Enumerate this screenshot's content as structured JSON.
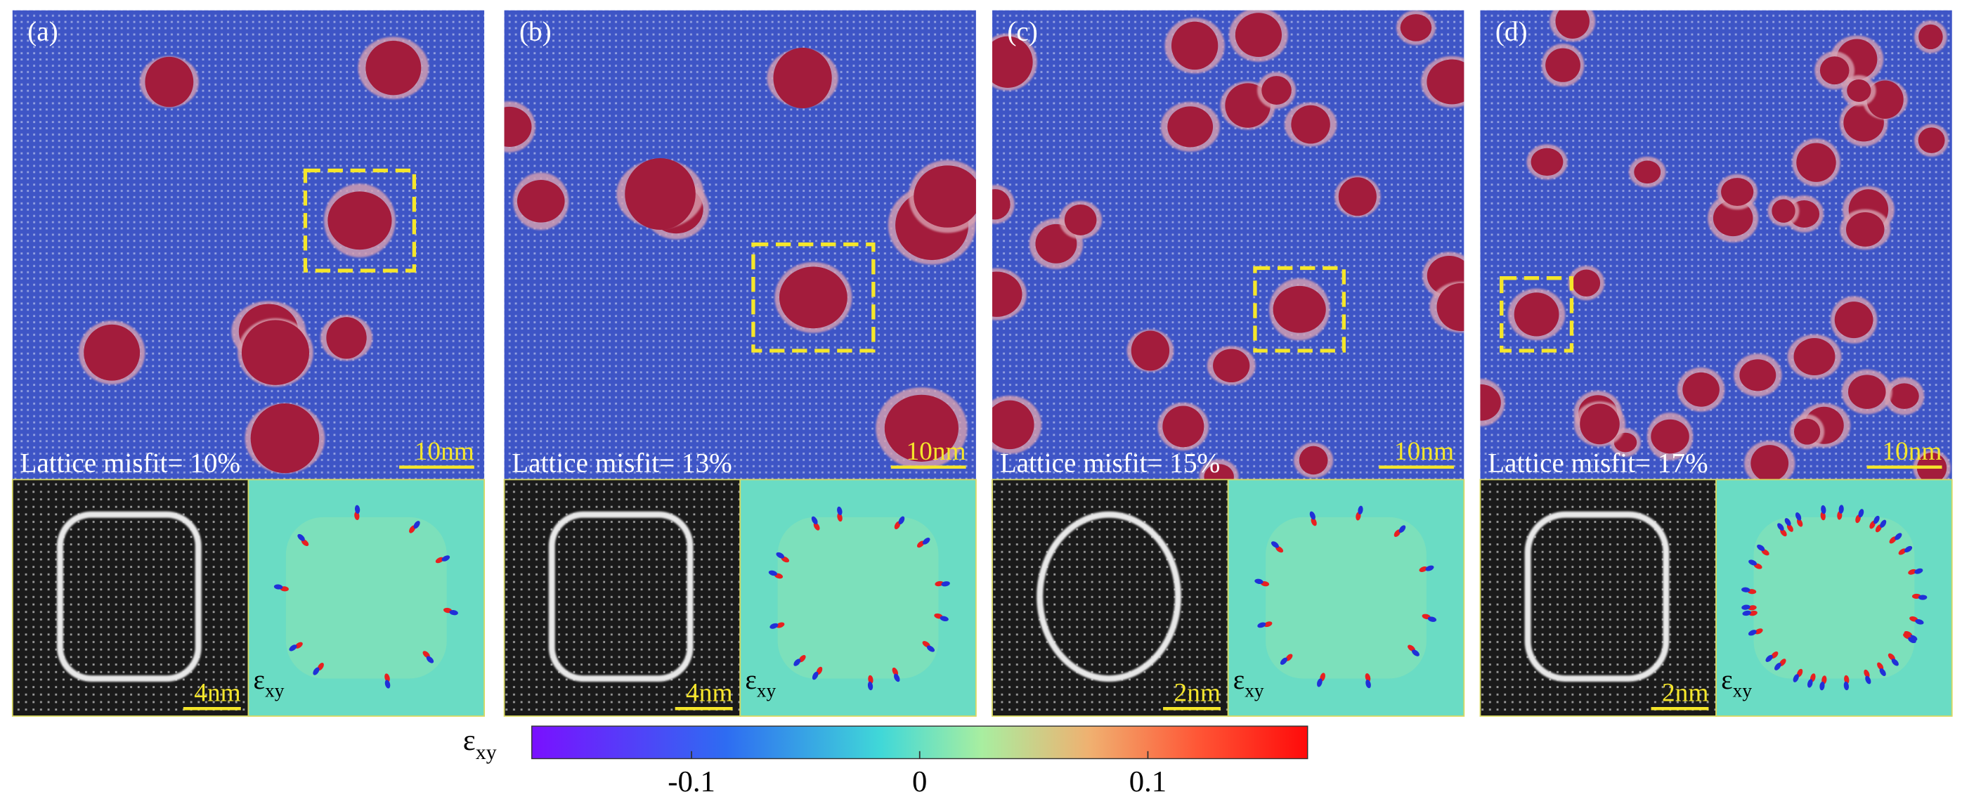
{
  "panels": [
    {
      "label": "(a)",
      "misfit": "Lattice misfit= 10%",
      "scale_main": "10nm",
      "scale_inset": "4nm"
    },
    {
      "label": "(b)",
      "misfit": "Lattice misfit= 13%",
      "scale_main": "10nm",
      "scale_inset": "4nm"
    },
    {
      "label": "(c)",
      "misfit": "Lattice misfit= 15%",
      "scale_main": "10nm",
      "scale_inset": "2nm"
    },
    {
      "label": "(d)",
      "misfit": "Lattice misfit= 17%",
      "scale_main": "10nm",
      "scale_inset": "2nm"
    }
  ],
  "inset_label": {
    "symbol": "ε",
    "subscript": "xy"
  },
  "colorbar": {
    "label": {
      "symbol": "ε",
      "subscript": "xy"
    },
    "lim": [
      -0.17,
      0.17
    ],
    "ticks": [
      -0.1,
      0,
      0.1
    ]
  }
}
